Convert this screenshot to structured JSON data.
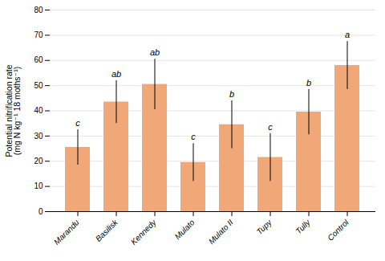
{
  "chart_data": {
    "type": "bar",
    "categories": [
      "Marandu",
      "Basilisk",
      "Kennedy",
      "Mulato",
      "Mulato II",
      "Tupy",
      "Tully",
      "Control"
    ],
    "values": [
      25.5,
      43.5,
      50.5,
      19.5,
      34.5,
      21.5,
      39.5,
      58.0
    ],
    "errors": [
      7.0,
      8.5,
      10.0,
      7.5,
      9.5,
      9.5,
      9.0,
      9.5
    ],
    "letters": [
      "c",
      "ab",
      "ab",
      "c",
      "b",
      "c",
      "b",
      "a"
    ],
    "color": "#F0A878",
    "ylabel": "Potential nitrification rate\n(mg N kg⁻¹ 18 moths⁻¹)",
    "ylim": [
      0,
      80
    ],
    "yticks": [
      0,
      10,
      20,
      30,
      40,
      50,
      60,
      70,
      80
    ],
    "grid": true
  }
}
